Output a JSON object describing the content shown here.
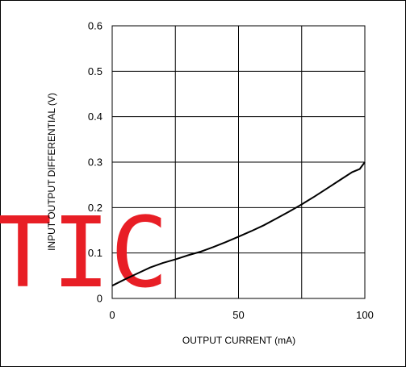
{
  "chart_data": {
    "type": "line",
    "title": "",
    "xlabel": "OUTPUT CURRENT (mA)",
    "ylabel": "INPUT OUTPUT DIFFERENTIAL (V)",
    "xlim": [
      0,
      100
    ],
    "ylim": [
      0,
      0.6
    ],
    "x_ticks": [
      0,
      50,
      100
    ],
    "x_tick_labels": [
      "0",
      "50",
      "100"
    ],
    "y_ticks": [
      0,
      0.1,
      0.2,
      0.3,
      0.4,
      0.5,
      0.6
    ],
    "y_tick_labels": [
      "0",
      "0.1",
      "0.2",
      "0.3",
      "0.4",
      "0.5",
      "0.6"
    ],
    "grid": true,
    "grid_x_divisions": 4,
    "grid_y_divisions": 6,
    "series": [
      {
        "x": [
          0,
          5,
          10,
          15,
          20,
          25,
          30,
          35,
          40,
          45,
          50,
          55,
          60,
          65,
          70,
          75,
          80,
          85,
          90,
          95,
          98,
          100
        ],
        "y": [
          0.028,
          0.042,
          0.055,
          0.068,
          0.078,
          0.086,
          0.095,
          0.103,
          0.113,
          0.124,
          0.136,
          0.148,
          0.161,
          0.176,
          0.191,
          0.207,
          0.224,
          0.242,
          0.26,
          0.278,
          0.285,
          0.3
        ],
        "color": "#000000"
      }
    ]
  },
  "watermark": {
    "text": "TIC",
    "color": "#e81e25"
  }
}
